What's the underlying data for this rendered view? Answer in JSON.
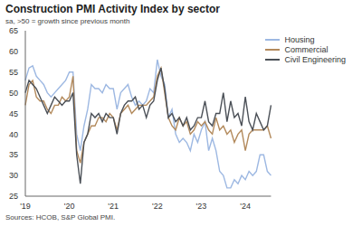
{
  "chart_data": {
    "type": "line",
    "title": "Construction PMI Activity Index by sector",
    "subtitle": "sa, >50 = growth since previous month",
    "source": "Sources: HCOB, S&P Global PMI.",
    "categories": [
      "'19",
      null,
      null,
      null,
      null,
      null,
      null,
      null,
      null,
      null,
      null,
      null,
      "'20",
      null,
      null,
      null,
      null,
      null,
      null,
      null,
      null,
      null,
      null,
      null,
      "'21",
      null,
      null,
      null,
      null,
      null,
      null,
      null,
      null,
      null,
      null,
      null,
      "'22",
      null,
      null,
      null,
      null,
      null,
      null,
      null,
      null,
      null,
      null,
      null,
      "'23",
      null,
      null,
      null,
      null,
      null,
      null,
      null,
      null,
      null,
      null,
      null,
      "'24",
      null,
      null,
      null,
      null,
      null,
      null,
      null
    ],
    "series": [
      {
        "name": "Housing",
        "color": "#9db8e2",
        "values": [
          53,
          56,
          56.5,
          54,
          53,
          52,
          50,
          49,
          50,
          51,
          52,
          53,
          55,
          55,
          40,
          36,
          42,
          46,
          52,
          51,
          51,
          50,
          52,
          51,
          51,
          46,
          50,
          51,
          52,
          49,
          47,
          48,
          47,
          48,
          51,
          50,
          58,
          54,
          52,
          44,
          46,
          40,
          38,
          39,
          38,
          36,
          40,
          38,
          41,
          43,
          36,
          39,
          36,
          31,
          30,
          27,
          27,
          29,
          28,
          30,
          29,
          31,
          30,
          31,
          35,
          35,
          31,
          30
        ]
      },
      {
        "name": "Commercial",
        "color": "#b38a5c",
        "values": [
          47,
          52,
          53,
          49,
          48,
          48,
          46,
          45,
          47,
          47,
          49,
          48,
          49,
          54,
          36,
          33,
          38,
          40,
          42,
          42,
          44,
          44,
          43,
          45,
          44,
          41,
          45,
          46,
          47,
          45,
          46,
          47,
          47,
          47,
          48,
          49,
          54,
          56,
          50,
          44,
          42,
          41,
          44,
          42,
          43,
          40,
          41,
          43,
          42,
          43,
          41,
          40,
          44,
          41,
          42,
          40,
          41,
          38,
          40,
          41,
          36,
          40,
          41,
          41,
          41,
          41,
          42,
          39
        ]
      },
      {
        "name": "Civil Engineering",
        "color": "#4b5057",
        "values": [
          50,
          53,
          52,
          51,
          49,
          47,
          45,
          47,
          49,
          48,
          47,
          48,
          48,
          50,
          35,
          28,
          38,
          40,
          45,
          44,
          45,
          43,
          45,
          44,
          44,
          40,
          45,
          47,
          48,
          48,
          49,
          46,
          47,
          44,
          47,
          48,
          53,
          56,
          51,
          44,
          45,
          43,
          44,
          42,
          44,
          41,
          42,
          44,
          44,
          48,
          43,
          42,
          45,
          45,
          50,
          43,
          48,
          44,
          45,
          42,
          49,
          43,
          41,
          45,
          43,
          41,
          42,
          47
        ]
      }
    ],
    "ylim": [
      25,
      65
    ],
    "yticks": [
      25,
      30,
      35,
      40,
      45,
      50,
      55,
      60,
      65
    ],
    "grid": false,
    "legend": "upper right"
  }
}
